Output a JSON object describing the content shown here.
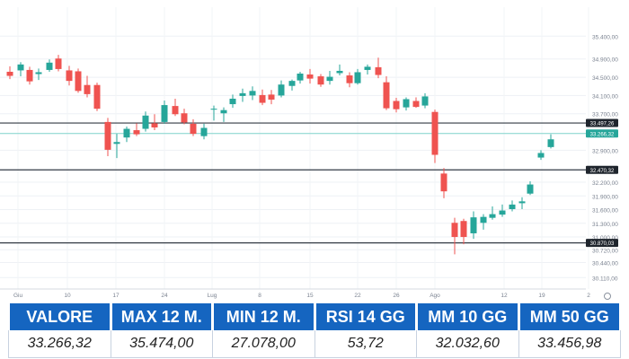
{
  "chart_data": {
    "type": "candlestick",
    "x_ticks": [
      "Giu",
      "10",
      "17",
      "24",
      "Lug",
      "8",
      "15",
      "22",
      "26",
      "Ago",
      "12",
      "19",
      "2"
    ],
    "y_ticks": [
      "35.400,00",
      "34.900,00",
      "34.500,00",
      "34.100,00",
      "33.700,00",
      "32.900,00",
      "32.200,00",
      "31.900,00",
      "31.600,00",
      "31.300,00",
      "31.000,00",
      "30.720,00",
      "30.440,00",
      "30.110,00"
    ],
    "y_tick_values": [
      35400,
      34900,
      34500,
      34100,
      33700,
      32900,
      32200,
      31900,
      31600,
      31300,
      31000,
      30720,
      30440,
      30110
    ],
    "ylim": [
      29860,
      35760
    ],
    "levels": [
      {
        "label": "33.497,26",
        "value": 33497.26,
        "style": "dark"
      },
      {
        "label": "33.266,32",
        "value": 33266.32,
        "style": "current"
      },
      {
        "label": "32.470,32",
        "value": 32470.32,
        "style": "dark"
      },
      {
        "label": "30.870,03",
        "value": 30870.03,
        "style": "dark"
      }
    ],
    "up_color": "#26a69a",
    "down_color": "#ef5350",
    "candles": [
      [
        34620,
        34740,
        34460,
        34530
      ],
      [
        34650,
        34830,
        34520,
        34780
      ],
      [
        34660,
        34730,
        34340,
        34410
      ],
      [
        34570,
        34690,
        34440,
        34610
      ],
      [
        34660,
        34890,
        34620,
        34820
      ],
      [
        34910,
        34990,
        34630,
        34680
      ],
      [
        34650,
        34750,
        34320,
        34420
      ],
      [
        34630,
        34690,
        34160,
        34200
      ],
      [
        34330,
        34530,
        34060,
        34130
      ],
      [
        34330,
        34380,
        33760,
        33810
      ],
      [
        33520,
        33610,
        32770,
        32910
      ],
      [
        33040,
        33260,
        32730,
        33080
      ],
      [
        33180,
        33420,
        33080,
        33370
      ],
      [
        33340,
        33490,
        33210,
        33250
      ],
      [
        33370,
        33750,
        33310,
        33660
      ],
      [
        33490,
        33690,
        33340,
        33400
      ],
      [
        33520,
        33990,
        33480,
        33890
      ],
      [
        33870,
        34030,
        33650,
        33690
      ],
      [
        33710,
        33810,
        33470,
        33510
      ],
      [
        33480,
        33580,
        33210,
        33260
      ],
      [
        33210,
        33480,
        33140,
        33390
      ],
      [
        33790,
        33880,
        33550,
        33810
      ],
      [
        33710,
        33840,
        33520,
        33780
      ],
      [
        33910,
        34120,
        33830,
        34030
      ],
      [
        34090,
        34250,
        33960,
        34150
      ],
      [
        34100,
        34300,
        34000,
        34200
      ],
      [
        34110,
        34230,
        33890,
        33940
      ],
      [
        34120,
        34220,
        33910,
        34010
      ],
      [
        34100,
        34430,
        34060,
        34340
      ],
      [
        34310,
        34450,
        34210,
        34420
      ],
      [
        34430,
        34620,
        34360,
        34580
      ],
      [
        34560,
        34680,
        34360,
        34470
      ],
      [
        34520,
        34570,
        34290,
        34340
      ],
      [
        34420,
        34640,
        34340,
        34510
      ],
      [
        34590,
        34780,
        34540,
        34640
      ],
      [
        34540,
        34610,
        34280,
        34370
      ],
      [
        34370,
        34680,
        34340,
        34610
      ],
      [
        34660,
        34780,
        34560,
        34730
      ],
      [
        34720,
        34930,
        34480,
        34550
      ],
      [
        34390,
        34520,
        33780,
        33820
      ],
      [
        33980,
        34050,
        33730,
        33800
      ],
      [
        33840,
        34060,
        33770,
        34020
      ],
      [
        33980,
        34060,
        33830,
        33850
      ],
      [
        33880,
        34150,
        33820,
        34080
      ],
      [
        33740,
        33790,
        32620,
        32800
      ],
      [
        32390,
        32510,
        31850,
        32000
      ],
      [
        31310,
        31420,
        30620,
        31000
      ],
      [
        31350,
        31400,
        30840,
        31000
      ],
      [
        31080,
        31560,
        30960,
        31430
      ],
      [
        31310,
        31500,
        31160,
        31440
      ],
      [
        31420,
        31670,
        31380,
        31500
      ],
      [
        31490,
        31710,
        31440,
        31580
      ],
      [
        31610,
        31800,
        31560,
        31710
      ],
      [
        31740,
        31870,
        31610,
        31780
      ],
      [
        31950,
        32220,
        31920,
        32150
      ],
      [
        32740,
        32900,
        32690,
        32840
      ],
      [
        32970,
        33250,
        32940,
        33140
      ]
    ],
    "candle_x": [
      11,
      23,
      33,
      43,
      55,
      65,
      77,
      87,
      97,
      108,
      120,
      130,
      141,
      152,
      162,
      172,
      183,
      195,
      205,
      215,
      227,
      238,
      249,
      259,
      270,
      281,
      292,
      302,
      313,
      325,
      334,
      345,
      357,
      367,
      378,
      389,
      398,
      409,
      421,
      430,
      441,
      452,
      463,
      473,
      484,
      494,
      506,
      516,
      527,
      538,
      548,
      559,
      570,
      581,
      590,
      602,
      613
    ]
  },
  "stats": {
    "headers": [
      "VALORE",
      "MAX 12 M.",
      "MIN 12 M.",
      "RSI 14 GG",
      "MM 10 GG",
      "MM 50 GG"
    ],
    "values": [
      "33.266,32",
      "35.474,00",
      "27.078,00",
      "53,72",
      "32.032,60",
      "33.456,98"
    ]
  }
}
